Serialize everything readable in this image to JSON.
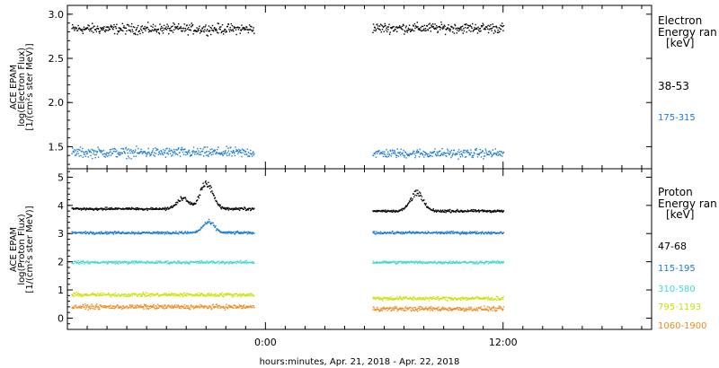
{
  "xlabel": "hours:minutes, Apr. 21, 2018 - Apr. 22, 2018",
  "x_ticks": [
    "0:00",
    "12:00"
  ],
  "chart_data": [
    {
      "type": "scatter",
      "panel": "electron",
      "ylabel_lines": [
        "ACE EPAM",
        "log(Electron Flux)",
        "[1/(cm²s ster MeV)]"
      ],
      "legend_title_lines": [
        "Electron",
        "Energy ran",
        "[keV]"
      ],
      "x_unit": "hours since Apr. 21, 2018 0:00",
      "xlim": [
        -10,
        19.5
      ],
      "ylim": [
        1.25,
        3.1
      ],
      "y_ticks": [
        "1.5",
        "2.0",
        "2.5",
        "3.0"
      ],
      "series": [
        {
          "name": "38-53",
          "color": "#000000",
          "segments": [
            {
              "x_start": -9.8,
              "x_end": -0.6,
              "center": 2.84,
              "noise": 0.05
            },
            {
              "x_start": 5.4,
              "x_end": 12.0,
              "center": 2.85,
              "noise": 0.05
            }
          ]
        },
        {
          "name": "175-315",
          "color": "#1a7ad4",
          "segments": [
            {
              "x_start": -9.8,
              "x_end": -0.6,
              "center": 1.44,
              "noise": 0.05
            },
            {
              "x_start": 5.4,
              "x_end": 12.0,
              "center": 1.43,
              "noise": 0.045
            }
          ]
        }
      ]
    },
    {
      "type": "scatter",
      "panel": "proton",
      "ylabel_lines": [
        "ACE EPAM",
        "log(Proton Flux)",
        "[1/(cm²s ster MeV)]"
      ],
      "legend_title_lines": [
        "Proton",
        "Energy ran",
        "[keV]"
      ],
      "x_unit": "hours since Apr. 21, 2018 0:00",
      "xlim": [
        -10,
        19.5
      ],
      "ylim": [
        -0.4,
        5.3
      ],
      "y_ticks": [
        "0",
        "1",
        "2",
        "3",
        "4",
        "5"
      ],
      "series": [
        {
          "name": "47-68",
          "color": "#000000",
          "segments": [
            {
              "x_start": -9.8,
              "x_end": -0.6,
              "center": 3.9,
              "noise": 0.04,
              "bumps": [
                {
                  "x": -3.0,
                  "height": 1.05,
                  "width": 0.45
                },
                {
                  "x": -4.2,
                  "height": 0.45,
                  "width": 0.4
                }
              ]
            },
            {
              "x_start": 5.4,
              "x_end": 12.0,
              "center": 3.82,
              "noise": 0.04,
              "bumps": [
                {
                  "x": 7.6,
                  "height": 0.75,
                  "width": 0.45
                }
              ]
            }
          ]
        },
        {
          "name": "115-195",
          "color": "#1a7ad4",
          "segments": [
            {
              "x_start": -9.8,
              "x_end": -0.6,
              "center": 3.05,
              "noise": 0.04,
              "bumps": [
                {
                  "x": -2.9,
                  "height": 0.45,
                  "width": 0.4
                }
              ]
            },
            {
              "x_start": 5.4,
              "x_end": 12.0,
              "center": 3.05,
              "noise": 0.04
            }
          ]
        },
        {
          "name": "310-580",
          "color": "#3fd9d0",
          "segments": [
            {
              "x_start": -9.8,
              "x_end": -0.6,
              "center": 2.0,
              "noise": 0.045
            },
            {
              "x_start": 5.4,
              "x_end": 12.0,
              "center": 2.0,
              "noise": 0.045
            }
          ]
        },
        {
          "name": "795-1193",
          "color": "#c8e400",
          "segments": [
            {
              "x_start": -9.8,
              "x_end": -0.6,
              "center": 0.85,
              "noise": 0.06
            },
            {
              "x_start": 5.4,
              "x_end": 12.0,
              "center": 0.72,
              "noise": 0.06
            }
          ]
        },
        {
          "name": "1060-1900",
          "color": "#f08a1c",
          "segments": [
            {
              "x_start": -9.8,
              "x_end": -0.6,
              "center": 0.42,
              "noise": 0.07
            },
            {
              "x_start": 5.4,
              "x_end": 12.0,
              "center": 0.35,
              "noise": 0.07
            }
          ]
        }
      ]
    }
  ]
}
